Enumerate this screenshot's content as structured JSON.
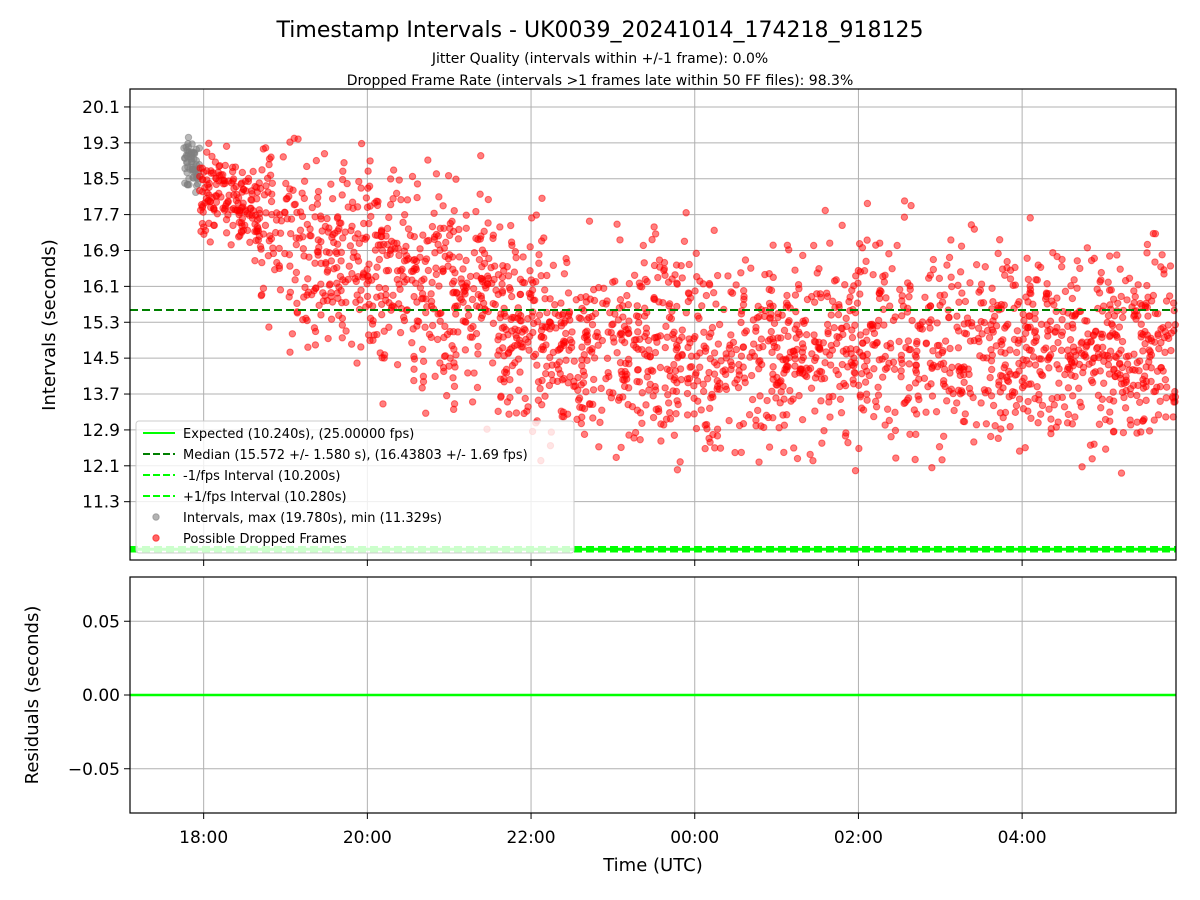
{
  "chart_data": [
    {
      "type": "scatter",
      "title": "Timestamp Intervals - UK0039_20241014_174218_918125",
      "subtitle_1": "Jitter Quality (intervals within +/-1 frame): 0.0%",
      "subtitle_2": "Dropped Frame Rate (intervals >1 frames late within 50 FF files): 98.3%",
      "ylabel": "Intervals (seconds)",
      "xlabel": "",
      "y_ticks": [
        "20.1",
        "19.3",
        "18.5",
        "17.7",
        "16.9",
        "16.1",
        "15.3",
        "14.5",
        "13.7",
        "12.9",
        "12.1",
        "11.3"
      ],
      "x_ticks": [
        "18:00",
        "20:00",
        "22:00",
        "00:00",
        "02:00",
        "04:00"
      ],
      "x_range_hours": [
        17.1,
        29.88
      ],
      "y_range": [
        10.0,
        20.5
      ],
      "grid": true,
      "legend_placement": "lower-left",
      "lines": [
        {
          "name": "Expected (10.240s), (25.00000 fps)",
          "value": 10.24,
          "style": "solid",
          "color": "#00ff00"
        },
        {
          "name": "Median (15.572 +/- 1.580 s), (16.43803 +/- 1.69 fps)",
          "value": 15.572,
          "style": "dashed",
          "color": "#008000"
        },
        {
          "name": "-1/fps Interval (10.200s)",
          "value": 10.2,
          "style": "dashed",
          "color": "#00ff00"
        },
        {
          "name": "+1/fps Interval (10.280s)",
          "value": 10.28,
          "style": "dashed",
          "color": "#00ff00"
        }
      ],
      "series": [
        {
          "name": "Intervals, max (19.780s), min (11.329s)",
          "color": "#808080",
          "x_range_hours": [
            17.75,
            17.95
          ],
          "y_center": 18.8,
          "y_spread": 0.45,
          "count": 60
        },
        {
          "name": "Possible Dropped Frames",
          "color": "#ff0000",
          "x_range_hours": [
            17.95,
            29.88
          ],
          "trend": [
            [
              17.95,
              18.3
            ],
            [
              18.5,
              17.9
            ],
            [
              19.5,
              16.6
            ],
            [
              21.0,
              16.1
            ],
            [
              22.5,
              14.8
            ],
            [
              24.0,
              14.6
            ],
            [
              26.0,
              14.8
            ],
            [
              28.0,
              14.9
            ],
            [
              29.88,
              14.7
            ]
          ],
          "y_spread": 1.3,
          "count": 2400
        }
      ]
    },
    {
      "type": "line",
      "title": "",
      "ylabel": "Residuals (seconds)",
      "xlabel": "Time (UTC)",
      "y_ticks": [
        "0.05",
        "0.00",
        "−0.05"
      ],
      "y_tick_values": [
        0.05,
        0.0,
        -0.05
      ],
      "x_ticks": [
        "18:00",
        "20:00",
        "22:00",
        "00:00",
        "02:00",
        "04:00"
      ],
      "y_range": [
        -0.08,
        0.08
      ],
      "grid": true,
      "series": [
        {
          "color": "#00ff00",
          "value": 0.0
        }
      ]
    }
  ]
}
